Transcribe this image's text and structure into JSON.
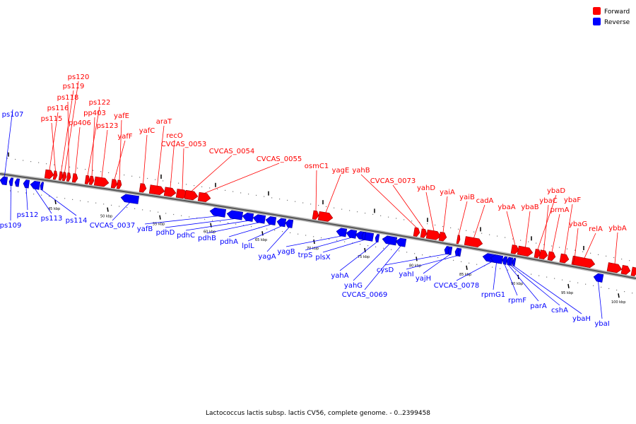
{
  "caption": "Lactococcus lactis subsp. lactis CV56, complete genome. - 0..2399458",
  "legend": {
    "forward": {
      "label": "Forward",
      "color": "#ff0000"
    },
    "reverse": {
      "label": "Reverse",
      "color": "#0000ff"
    }
  },
  "forward_genes": [
    "ps120",
    "ps119",
    "ps118",
    "ps116",
    "ps115",
    "ps122",
    "pp403",
    "pp406",
    "ps123",
    "yafE",
    "yafF",
    "yafC",
    "araT",
    "recO",
    "CVCAS_0053",
    "CVCAS_0054",
    "CVCAS_0055",
    "osmC1",
    "yagE",
    "yahB",
    "CVCAS_0073",
    "yahD",
    "yaiA",
    "yaiB",
    "cadA",
    "ybaA",
    "ybaB",
    "ybaD",
    "ybaC",
    "prmA",
    "ybaF",
    "ybaG",
    "relA",
    "ybbA"
  ],
  "reverse_genes": [
    "ps107",
    "ps109",
    "ps112",
    "ps113",
    "ps114",
    "CVCAS_0037",
    "yafB",
    "pdhD",
    "pdhC",
    "pdhB",
    "pdhA",
    "lplL",
    "yagA",
    "yagB",
    "trpS",
    "plsX",
    "yahA",
    "yahG",
    "CVCAS_0069",
    "cysD",
    "yahI",
    "yajH",
    "CVCAS_0078",
    "rpmG1",
    "rpmF",
    "parA",
    "cshA",
    "ybaH",
    "ybaI"
  ],
  "scale_ticks": [
    "45 kbp",
    "50 kbp",
    "55 kbp",
    "60 kbp",
    "65 kbp",
    "70 kbp",
    "75 kbp",
    "80 kbp",
    "85 kbp",
    "90 kbp",
    "95 kbp",
    "100 kbp"
  ]
}
